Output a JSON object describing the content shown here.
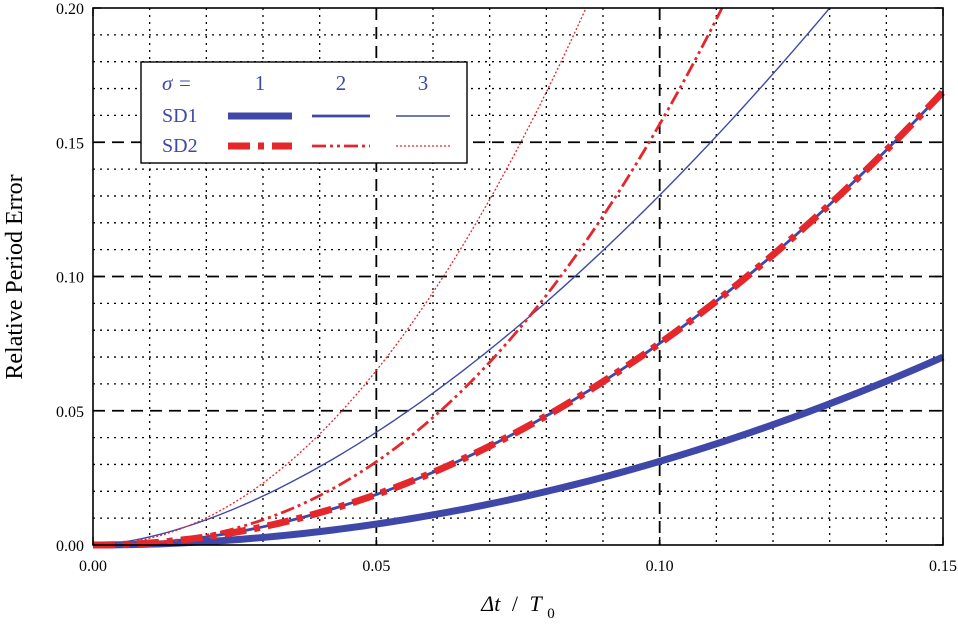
{
  "chart_data": {
    "type": "line",
    "xlabel": "Δt / T0",
    "xlabel_main": "Δt",
    "xlabel_slash": "/",
    "xlabel_T": "T",
    "xlabel_sub": "0",
    "ylabel": "Relative Period Error",
    "xlim": [
      0,
      0.15
    ],
    "ylim": [
      0,
      0.2
    ],
    "x_ticks": [
      "0.00",
      "0.05",
      "0.10",
      "0.15"
    ],
    "y_ticks": [
      "0.00",
      "0.05",
      "0.10",
      "0.15",
      "0.20"
    ],
    "grid": "major dashed, minor dotted",
    "legend": {
      "position": "top-left",
      "sigma_label": "σ =",
      "columns": [
        "1",
        "2",
        "3"
      ],
      "rows": [
        "SD1",
        "SD2"
      ]
    },
    "colors": {
      "SD1": "#3f48a8",
      "SD2": "#e5262b"
    },
    "series": [
      {
        "name": "SD1 σ=1",
        "method": "SD1",
        "sigma": 1,
        "x": [
          0,
          0.05,
          0.1,
          0.15
        ],
        "values": [
          0,
          0.0078,
          0.0311,
          0.07
        ]
      },
      {
        "name": "SD1 σ=2",
        "method": "SD1",
        "sigma": 2,
        "x": [
          0,
          0.05,
          0.1,
          0.15
        ],
        "values": [
          0,
          0.0188,
          0.075,
          0.1688
        ]
      },
      {
        "name": "SD1 σ=3",
        "method": "SD1",
        "sigma": 3,
        "x": [
          0,
          0.05,
          0.1,
          0.13
        ],
        "values": [
          0,
          0.042,
          0.121,
          0.2
        ]
      },
      {
        "name": "SD2 σ=1",
        "method": "SD2",
        "sigma": 1,
        "x": [
          0,
          0.05,
          0.1,
          0.15
        ],
        "values": [
          0,
          0.0188,
          0.075,
          0.1688
        ]
      },
      {
        "name": "SD2 σ=2",
        "method": "SD2",
        "sigma": 2,
        "x": [
          0,
          0.05,
          0.1,
          0.111
        ],
        "values": [
          0,
          0.031,
          0.164,
          0.2
        ]
      },
      {
        "name": "SD2 σ=3",
        "method": "SD2",
        "sigma": 3,
        "x": [
          0,
          0.05,
          0.075,
          0.087
        ],
        "values": [
          0,
          0.065,
          0.148,
          0.2
        ]
      }
    ]
  }
}
